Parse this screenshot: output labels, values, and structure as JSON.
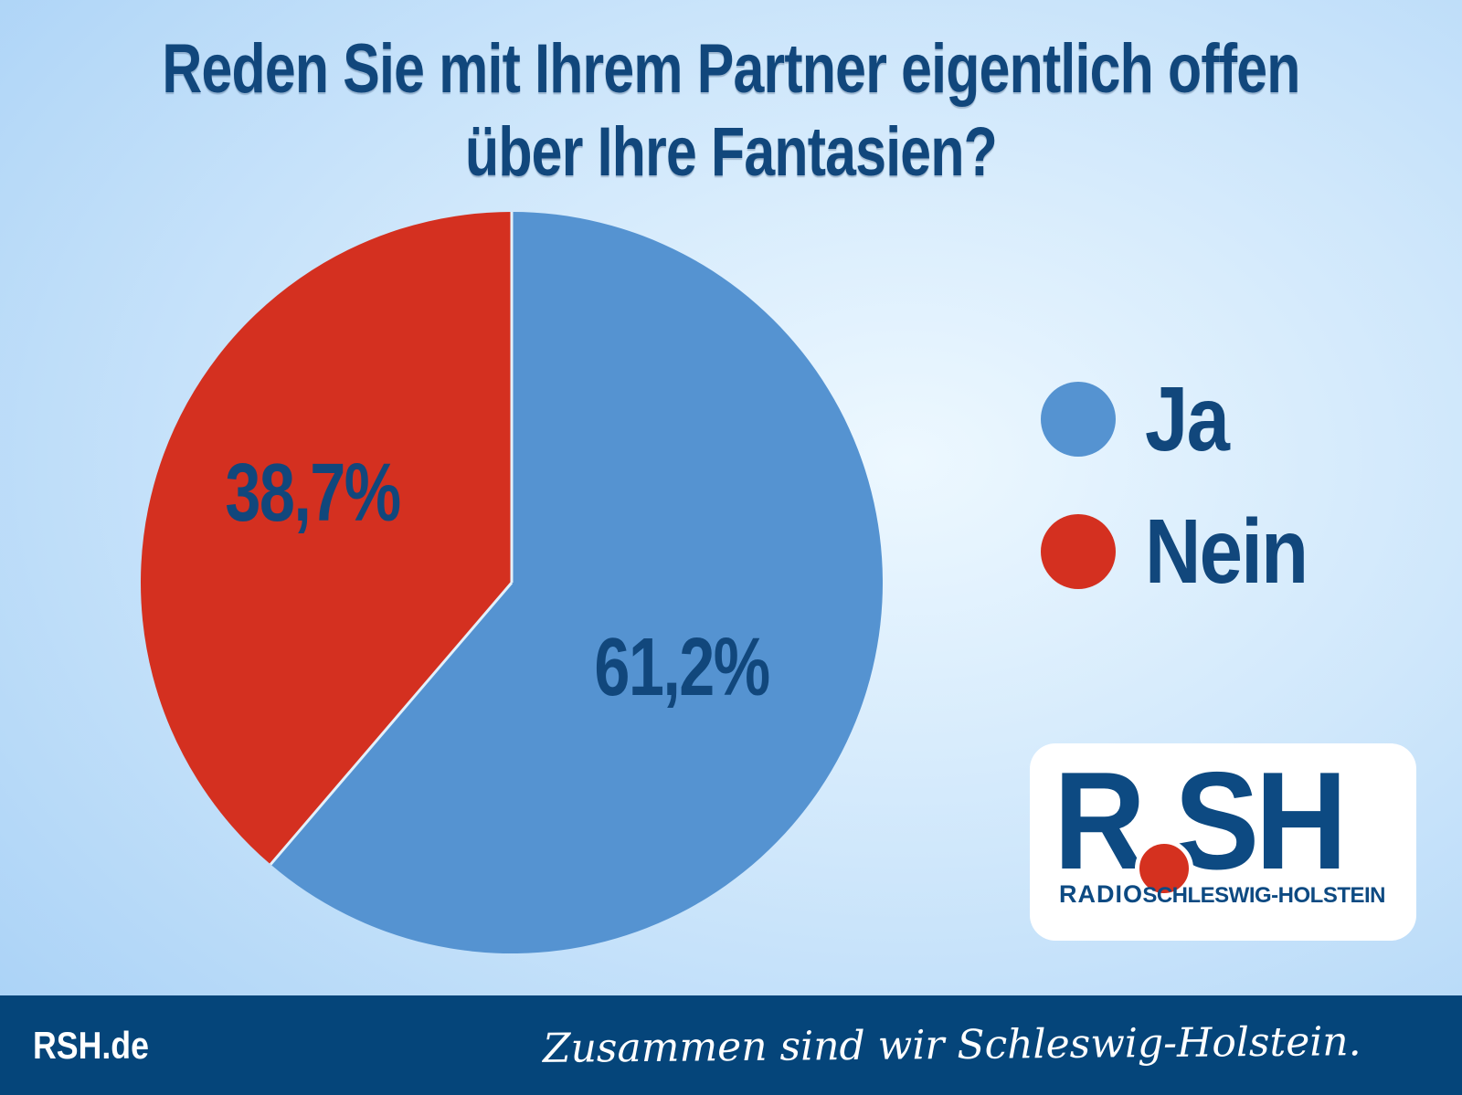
{
  "title": {
    "line1": "Reden Sie mit Ihrem Partner eigentlich offen",
    "line2": "über Ihre Fantasien?"
  },
  "chart_data": {
    "type": "pie",
    "title": "Reden Sie mit Ihrem Partner eigentlich offen über Ihre Fantasien?",
    "slices": [
      {
        "label": "Ja",
        "value": 61.2,
        "display": "61,2%",
        "color": "#5593d1"
      },
      {
        "label": "Nein",
        "value": 38.7,
        "display": "38,7%",
        "color": "#d43020"
      }
    ],
    "start_angle_deg": 0,
    "direction": "clockwise",
    "legend_position": "right",
    "separator_color": "#e3f1fc"
  },
  "legend": {
    "items": [
      {
        "label": "Ja",
        "color": "#5593d1"
      },
      {
        "label": "Nein",
        "color": "#d43020"
      }
    ]
  },
  "logo": {
    "letter_r": "R",
    "letters_sh": "SH",
    "sub_left": "RADIO",
    "sub_right": "SCHLESWIG-HOLSTEIN"
  },
  "footer": {
    "site": "RSH.de",
    "slogan": "Zusammen sind wir Schleswig-Holstein."
  },
  "colors": {
    "background_edge": "#a6d0f6",
    "background_center": "#edf8ff",
    "navy": "#11477c",
    "pie_blue": "#5593d1",
    "pie_red": "#d43020",
    "footer_bar": "#05457a",
    "logo_navy": "#0d4a82",
    "logo_red": "#d5311f"
  }
}
